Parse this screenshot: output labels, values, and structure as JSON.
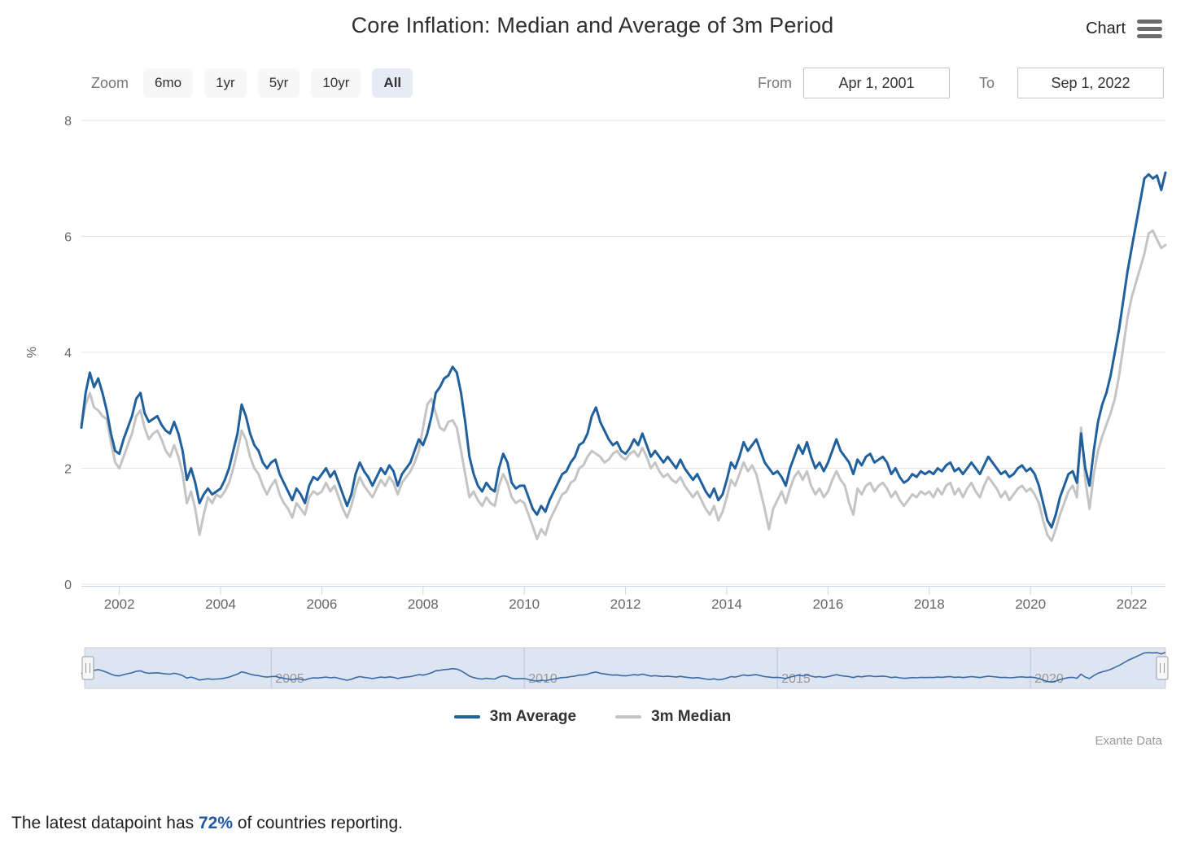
{
  "header": {
    "title": "Core Inflation: Median and Average of 3m Period",
    "chart_menu_label": "Chart"
  },
  "toolbar": {
    "zoom_label": "Zoom",
    "buttons": [
      {
        "label": "6mo",
        "selected": false
      },
      {
        "label": "1yr",
        "selected": false
      },
      {
        "label": "5yr",
        "selected": false
      },
      {
        "label": "10yr",
        "selected": false
      },
      {
        "label": "All",
        "selected": true
      }
    ],
    "from_label": "From",
    "from_value": "Apr 1, 2001",
    "to_label": "To",
    "to_value": "Sep 1, 2022"
  },
  "legend": [
    {
      "label": "3m Average",
      "color": "#20609c"
    },
    {
      "label": "3m Median",
      "color": "#c4c4c4"
    }
  ],
  "credits": "Exante Data",
  "footer": {
    "prefix": "The latest datapoint has ",
    "highlight": "72%",
    "suffix": " of countries reporting."
  },
  "chart_data": {
    "type": "line",
    "title": "Core Inflation: Median and Average of 3m Period",
    "xlabel": "",
    "ylabel": "%",
    "ylim": [
      0,
      8
    ],
    "y_ticks": [
      0,
      2,
      4,
      6,
      8
    ],
    "x_ticks": [
      2002,
      2004,
      2006,
      2008,
      2010,
      2012,
      2014,
      2016,
      2018,
      2020,
      2022
    ],
    "navigator_ticks": [
      2005,
      2010,
      2015,
      2020
    ],
    "grid": true,
    "legend_position": "bottom",
    "x_start": "2001-04",
    "x_end": "2022-09",
    "frequency": "monthly",
    "navigator_color": "#3b6ba5",
    "series": [
      {
        "name": "3m Median",
        "color": "#c4c4c4",
        "values": [
          2.75,
          3.1,
          3.3,
          3.05,
          3.0,
          2.9,
          2.85,
          2.45,
          2.1,
          2.0,
          2.2,
          2.4,
          2.6,
          2.9,
          3.0,
          2.7,
          2.5,
          2.6,
          2.65,
          2.5,
          2.3,
          2.2,
          2.4,
          2.2,
          1.9,
          1.4,
          1.6,
          1.3,
          0.85,
          1.2,
          1.5,
          1.4,
          1.55,
          1.5,
          1.6,
          1.75,
          2.0,
          2.3,
          2.65,
          2.5,
          2.2,
          2.0,
          1.9,
          1.7,
          1.55,
          1.7,
          1.8,
          1.55,
          1.4,
          1.3,
          1.15,
          1.4,
          1.3,
          1.2,
          1.5,
          1.6,
          1.55,
          1.6,
          1.75,
          1.6,
          1.7,
          1.5,
          1.3,
          1.15,
          1.35,
          1.65,
          1.85,
          1.7,
          1.6,
          1.5,
          1.65,
          1.8,
          1.7,
          1.85,
          1.75,
          1.55,
          1.75,
          1.85,
          1.95,
          2.1,
          2.3,
          2.7,
          3.1,
          3.2,
          2.95,
          2.7,
          2.65,
          2.8,
          2.83,
          2.7,
          2.3,
          1.9,
          1.5,
          1.6,
          1.45,
          1.35,
          1.5,
          1.4,
          1.35,
          1.7,
          1.9,
          1.75,
          1.5,
          1.4,
          1.45,
          1.4,
          1.2,
          1.0,
          0.78,
          0.95,
          0.85,
          1.1,
          1.25,
          1.4,
          1.55,
          1.6,
          1.75,
          1.8,
          2.0,
          2.05,
          2.2,
          2.3,
          2.25,
          2.2,
          2.1,
          2.15,
          2.25,
          2.3,
          2.2,
          2.15,
          2.25,
          2.3,
          2.2,
          2.35,
          2.2,
          2.0,
          2.1,
          1.95,
          1.85,
          1.9,
          1.8,
          1.75,
          1.85,
          1.7,
          1.6,
          1.5,
          1.6,
          1.45,
          1.3,
          1.2,
          1.35,
          1.1,
          1.25,
          1.5,
          1.8,
          1.7,
          1.9,
          2.1,
          1.95,
          2.05,
          1.9,
          1.6,
          1.3,
          0.95,
          1.3,
          1.45,
          1.6,
          1.4,
          1.65,
          1.85,
          1.95,
          1.8,
          1.95,
          1.7,
          1.55,
          1.65,
          1.5,
          1.6,
          1.8,
          1.95,
          1.8,
          1.7,
          1.4,
          1.2,
          1.65,
          1.55,
          1.7,
          1.75,
          1.6,
          1.7,
          1.75,
          1.65,
          1.5,
          1.6,
          1.45,
          1.35,
          1.45,
          1.55,
          1.5,
          1.6,
          1.55,
          1.6,
          1.5,
          1.65,
          1.55,
          1.7,
          1.75,
          1.55,
          1.65,
          1.5,
          1.65,
          1.75,
          1.6,
          1.5,
          1.7,
          1.85,
          1.75,
          1.65,
          1.5,
          1.6,
          1.45,
          1.55,
          1.65,
          1.7,
          1.6,
          1.65,
          1.55,
          1.4,
          1.1,
          0.85,
          0.75,
          0.95,
          1.2,
          1.4,
          1.6,
          1.7,
          1.5,
          2.7,
          1.8,
          1.3,
          1.9,
          2.3,
          2.55,
          2.75,
          2.95,
          3.2,
          3.6,
          4.1,
          4.6,
          4.95,
          5.2,
          5.45,
          5.7,
          6.05,
          6.1,
          5.95,
          5.8,
          5.85
        ]
      },
      {
        "name": "3m Average",
        "color": "#20609c",
        "values": [
          2.7,
          3.3,
          3.65,
          3.4,
          3.55,
          3.3,
          3.0,
          2.6,
          2.3,
          2.25,
          2.5,
          2.7,
          2.9,
          3.2,
          3.3,
          2.95,
          2.8,
          2.85,
          2.9,
          2.75,
          2.65,
          2.6,
          2.8,
          2.6,
          2.3,
          1.8,
          2.0,
          1.75,
          1.4,
          1.55,
          1.65,
          1.55,
          1.6,
          1.65,
          1.8,
          2.0,
          2.3,
          2.6,
          3.1,
          2.9,
          2.6,
          2.4,
          2.3,
          2.1,
          2.0,
          2.1,
          2.15,
          1.9,
          1.75,
          1.6,
          1.45,
          1.65,
          1.55,
          1.4,
          1.7,
          1.85,
          1.8,
          1.9,
          2.0,
          1.85,
          1.95,
          1.75,
          1.55,
          1.35,
          1.55,
          1.9,
          2.1,
          1.95,
          1.85,
          1.7,
          1.85,
          2.0,
          1.9,
          2.05,
          1.95,
          1.7,
          1.9,
          2.0,
          2.1,
          2.3,
          2.5,
          2.4,
          2.6,
          2.9,
          3.3,
          3.4,
          3.55,
          3.6,
          3.75,
          3.65,
          3.3,
          2.8,
          2.2,
          1.9,
          1.7,
          1.6,
          1.75,
          1.65,
          1.6,
          2.0,
          2.25,
          2.1,
          1.75,
          1.65,
          1.7,
          1.7,
          1.5,
          1.3,
          1.2,
          1.35,
          1.25,
          1.45,
          1.6,
          1.75,
          1.9,
          1.95,
          2.1,
          2.2,
          2.4,
          2.45,
          2.6,
          2.9,
          3.05,
          2.8,
          2.65,
          2.5,
          2.4,
          2.45,
          2.3,
          2.25,
          2.35,
          2.5,
          2.4,
          2.6,
          2.4,
          2.2,
          2.3,
          2.2,
          2.1,
          2.2,
          2.1,
          2.0,
          2.15,
          2.0,
          1.9,
          1.8,
          1.9,
          1.75,
          1.6,
          1.5,
          1.65,
          1.45,
          1.55,
          1.8,
          2.1,
          2.0,
          2.2,
          2.45,
          2.3,
          2.4,
          2.5,
          2.3,
          2.1,
          2.0,
          1.9,
          1.95,
          1.85,
          1.7,
          2.0,
          2.2,
          2.4,
          2.25,
          2.45,
          2.2,
          2.0,
          2.1,
          1.95,
          2.1,
          2.3,
          2.5,
          2.3,
          2.2,
          2.1,
          1.9,
          2.15,
          2.05,
          2.2,
          2.25,
          2.1,
          2.15,
          2.2,
          2.1,
          1.9,
          2.0,
          1.85,
          1.75,
          1.8,
          1.9,
          1.85,
          1.95,
          1.9,
          1.95,
          1.9,
          2.0,
          1.95,
          2.05,
          2.1,
          1.95,
          2.0,
          1.9,
          2.0,
          2.1,
          2.0,
          1.9,
          2.05,
          2.2,
          2.1,
          2.0,
          1.9,
          1.95,
          1.85,
          1.9,
          2.0,
          2.05,
          1.95,
          2.0,
          1.9,
          1.7,
          1.4,
          1.1,
          0.98,
          1.2,
          1.5,
          1.7,
          1.9,
          1.95,
          1.75,
          2.6,
          2.0,
          1.7,
          2.3,
          2.8,
          3.1,
          3.3,
          3.6,
          4.0,
          4.4,
          4.9,
          5.4,
          5.8,
          6.2,
          6.6,
          7.0,
          7.07,
          7.0,
          7.05,
          6.8,
          7.1
        ]
      }
    ]
  }
}
